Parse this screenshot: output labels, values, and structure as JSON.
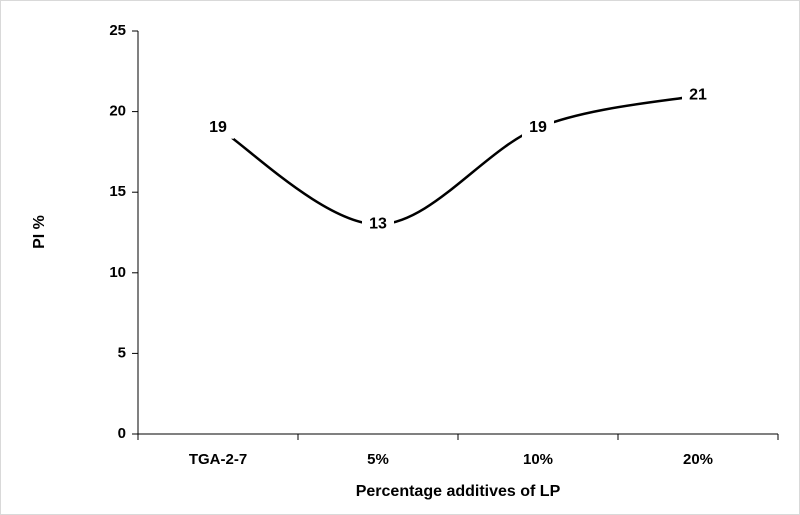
{
  "chart_data": {
    "type": "line",
    "y_label": "PI %",
    "x_label": "Percentage additives of LP",
    "categories": [
      "TGA-2-7",
      "5%",
      "10%",
      "20%"
    ],
    "values": [
      19,
      13,
      19,
      21
    ],
    "color": "#000000",
    "smooth": true,
    "ylim": [
      0,
      25
    ],
    "yticks": [
      0,
      5,
      10,
      15,
      20,
      25
    ]
  }
}
